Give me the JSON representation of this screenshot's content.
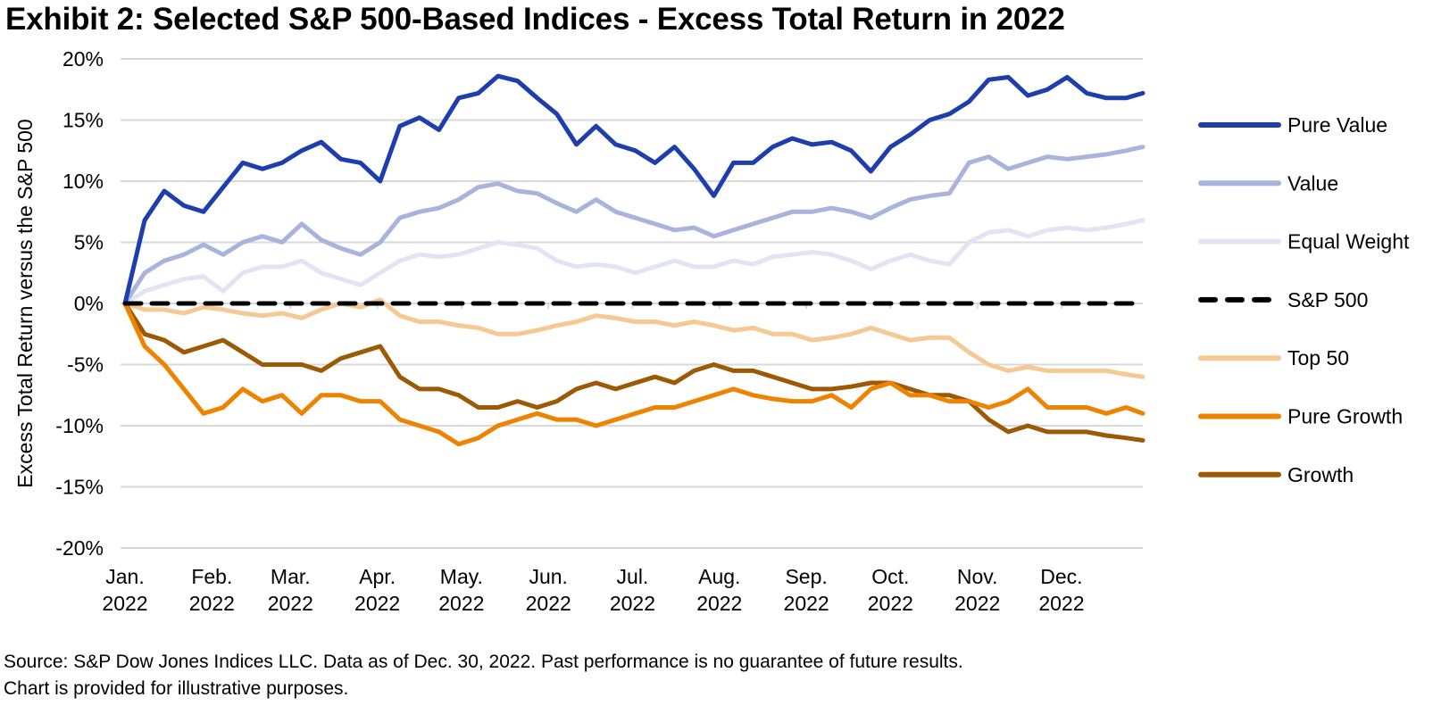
{
  "title": "Exhibit 2: Selected S&P 500-Based Indices - Excess Total Return in 2022",
  "footer": {
    "line1": "Source: S&P Dow Jones Indices LLC. Data as of Dec. 30, 2022. Past performance is no guarantee of future results.",
    "line2": "Chart is provided for illustrative purposes."
  },
  "chart_data": {
    "type": "line",
    "title": "Exhibit 2: Selected S&P 500-Based Indices - Excess Total Return in 2022",
    "xlabel": "",
    "ylabel": "Excess Total Return versus the S&P 500",
    "ylim": [
      -20,
      20
    ],
    "yticks": [
      20,
      15,
      10,
      5,
      0,
      -5,
      -10,
      -15,
      -20
    ],
    "ytick_labels": [
      "20%",
      "15%",
      "10%",
      "5%",
      "0%",
      "-5%",
      "-10%",
      "-15%",
      "-20%"
    ],
    "grid": true,
    "legend_position": "right",
    "x_ticks": [
      {
        "line1": "Jan.",
        "line2": "2022",
        "day": 0
      },
      {
        "line1": "Feb.",
        "line2": "2022",
        "day": 31
      },
      {
        "line1": "Mar.",
        "line2": "2022",
        "day": 59
      },
      {
        "line1": "Apr.",
        "line2": "2022",
        "day": 90
      },
      {
        "line1": "May.",
        "line2": "2022",
        "day": 120
      },
      {
        "line1": "Jun.",
        "line2": "2022",
        "day": 151
      },
      {
        "line1": "Jul.",
        "line2": "2022",
        "day": 181
      },
      {
        "line1": "Aug.",
        "line2": "2022",
        "day": 212
      },
      {
        "line1": "Sep.",
        "line2": "2022",
        "day": 243
      },
      {
        "line1": "Oct.",
        "line2": "2022",
        "day": 273
      },
      {
        "line1": "Nov.",
        "line2": "2022",
        "day": 304
      },
      {
        "line1": "Dec.",
        "line2": "2022",
        "day": 334
      }
    ],
    "x_range_days": [
      0,
      363
    ],
    "x_step_days": 7,
    "series": [
      {
        "name": "Pure Value",
        "color": "#1f3ead",
        "dash": false,
        "values": [
          0,
          6.8,
          9.2,
          8.0,
          7.5,
          9.5,
          11.5,
          11.0,
          11.5,
          12.5,
          13.2,
          11.8,
          11.5,
          10.0,
          14.5,
          15.2,
          14.2,
          16.8,
          17.2,
          18.6,
          18.2,
          16.8,
          15.5,
          13.0,
          14.5,
          13.0,
          12.5,
          11.5,
          12.8,
          11.0,
          8.8,
          11.5,
          11.5,
          12.8,
          13.5,
          13.0,
          13.2,
          12.5,
          10.8,
          12.8,
          13.8,
          15.0,
          15.5,
          16.5,
          18.3,
          18.5,
          17.0,
          17.5,
          18.5,
          17.2,
          16.8,
          16.8,
          17.2
        ]
      },
      {
        "name": "Value",
        "color": "#a8b4de",
        "dash": false,
        "values": [
          0,
          2.5,
          3.5,
          4.0,
          4.8,
          4.0,
          5.0,
          5.5,
          5.0,
          6.5,
          5.2,
          4.5,
          4.0,
          5.0,
          7.0,
          7.5,
          7.8,
          8.5,
          9.5,
          9.8,
          9.2,
          9.0,
          8.2,
          7.5,
          8.5,
          7.5,
          7.0,
          6.5,
          6.0,
          6.2,
          5.5,
          6.0,
          6.5,
          7.0,
          7.5,
          7.5,
          7.8,
          7.5,
          7.0,
          7.8,
          8.5,
          8.8,
          9.0,
          11.5,
          12.0,
          11.0,
          11.5,
          12.0,
          11.8,
          12.0,
          12.2,
          12.5,
          12.8
        ]
      },
      {
        "name": "Equal Weight",
        "color": "#e1e4f5",
        "dash": false,
        "values": [
          0,
          1.0,
          1.5,
          2.0,
          2.2,
          1.0,
          2.5,
          3.0,
          3.0,
          3.5,
          2.5,
          2.0,
          1.5,
          2.5,
          3.5,
          4.0,
          3.8,
          4.0,
          4.5,
          5.0,
          4.8,
          4.5,
          3.5,
          3.0,
          3.2,
          3.0,
          2.5,
          3.0,
          3.5,
          3.0,
          3.0,
          3.5,
          3.2,
          3.8,
          4.0,
          4.2,
          4.0,
          3.5,
          2.8,
          3.5,
          4.0,
          3.5,
          3.2,
          5.0,
          5.8,
          6.0,
          5.5,
          6.0,
          6.2,
          6.0,
          6.2,
          6.5,
          6.8
        ]
      },
      {
        "name": "S&P 500",
        "color": "#000000",
        "dash": true,
        "values": [
          0,
          0,
          0,
          0,
          0,
          0,
          0,
          0,
          0,
          0,
          0,
          0,
          0,
          0,
          0,
          0,
          0,
          0,
          0,
          0,
          0,
          0,
          0,
          0,
          0,
          0,
          0,
          0,
          0,
          0,
          0,
          0,
          0,
          0,
          0,
          0,
          0,
          0,
          0,
          0,
          0,
          0,
          0,
          0,
          0,
          0,
          0,
          0,
          0,
          0,
          0,
          0,
          0
        ]
      },
      {
        "name": "Top 50",
        "color": "#f6c994",
        "dash": false,
        "values": [
          0,
          -0.5,
          -0.5,
          -0.8,
          -0.3,
          -0.5,
          -0.8,
          -1.0,
          -0.8,
          -1.2,
          -0.5,
          0,
          -0.3,
          0.3,
          -1.0,
          -1.5,
          -1.5,
          -1.8,
          -2.0,
          -2.5,
          -2.5,
          -2.2,
          -1.8,
          -1.5,
          -1.0,
          -1.2,
          -1.5,
          -1.5,
          -1.8,
          -1.5,
          -1.8,
          -2.2,
          -2.0,
          -2.5,
          -2.5,
          -3.0,
          -2.8,
          -2.5,
          -2.0,
          -2.5,
          -3.0,
          -2.8,
          -2.8,
          -4.0,
          -5.0,
          -5.5,
          -5.2,
          -5.5,
          -5.5,
          -5.5,
          -5.5,
          -5.8,
          -6.0
        ]
      },
      {
        "name": "Pure Growth",
        "color": "#ee8300",
        "dash": false,
        "values": [
          0,
          -3.5,
          -5.0,
          -7.0,
          -9.0,
          -8.5,
          -7.0,
          -8.0,
          -7.5,
          -9.0,
          -7.5,
          -7.5,
          -8.0,
          -8.0,
          -9.5,
          -10.0,
          -10.5,
          -11.5,
          -11.0,
          -10.0,
          -9.5,
          -9.0,
          -9.5,
          -9.5,
          -10.0,
          -9.5,
          -9.0,
          -8.5,
          -8.5,
          -8.0,
          -7.5,
          -7.0,
          -7.5,
          -7.8,
          -8.0,
          -8.0,
          -7.5,
          -8.5,
          -7.0,
          -6.5,
          -7.5,
          -7.5,
          -8.0,
          -8.0,
          -8.5,
          -8.0,
          -7.0,
          -8.5,
          -8.5,
          -8.5,
          -9.0,
          -8.5,
          -9.0
        ]
      },
      {
        "name": "Growth",
        "color": "#9c5a06",
        "dash": false,
        "values": [
          0,
          -2.5,
          -3.0,
          -4.0,
          -3.5,
          -3.0,
          -4.0,
          -5.0,
          -5.0,
          -5.0,
          -5.5,
          -4.5,
          -4.0,
          -3.5,
          -6.0,
          -7.0,
          -7.0,
          -7.5,
          -8.5,
          -8.5,
          -8.0,
          -8.5,
          -8.0,
          -7.0,
          -6.5,
          -7.0,
          -6.5,
          -6.0,
          -6.5,
          -5.5,
          -5.0,
          -5.5,
          -5.5,
          -6.0,
          -6.5,
          -7.0,
          -7.0,
          -6.8,
          -6.5,
          -6.5,
          -7.0,
          -7.5,
          -7.5,
          -8.0,
          -9.5,
          -10.5,
          -10.0,
          -10.5,
          -10.5,
          -10.5,
          -10.8,
          -11.0,
          -11.2
        ]
      }
    ]
  }
}
